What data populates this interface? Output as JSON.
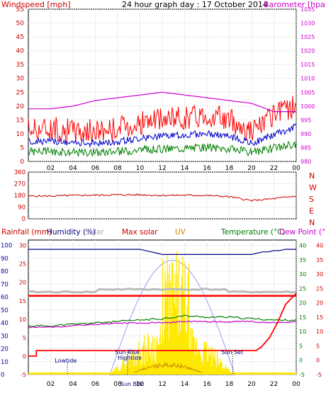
{
  "header": {
    "title": "24 hour graph day : 17 October 2014",
    "left_label": "Windspeed [mph]",
    "right_label": "Barometer [hpa]"
  },
  "colors": {
    "wind": "#ff0000",
    "windavg": "#0000cc",
    "windmin": "#008000",
    "baro": "#cc00cc",
    "dir": "#cc0000",
    "rain": "#0000cc",
    "humidity": "#000080",
    "solarmax": "#9999ff",
    "solar": "#ffe800",
    "uv": "#cc8800",
    "temp": "#008000",
    "dew": "#cc00cc",
    "rainline": "#ff0000",
    "band": "#bbbbbb",
    "grid": "#cccccc",
    "label_rain": "#cc0000",
    "label_humidity": "#000080",
    "label_solar": "#aaaaaa",
    "label_maxsolar": "#cc0000",
    "label_uv": "#cc8800",
    "label_temp": "#008000",
    "label_dew": "#cc00cc"
  },
  "wind_panel": {
    "y_ticks": [
      "55",
      "50",
      "45",
      "40",
      "35",
      "30",
      "25",
      "20",
      "15",
      "10",
      "5",
      "0"
    ],
    "baro_ticks": [
      "1035",
      "1030",
      "1025",
      "1020",
      "1015",
      "1010",
      "1005",
      "1000",
      "995",
      "990",
      "985",
      "980"
    ]
  },
  "dir_panel": {
    "y_ticks": [
      "360",
      "270",
      "180",
      "90",
      "0"
    ],
    "compass": [
      "N",
      "W",
      "S",
      "E",
      "N"
    ]
  },
  "bottom_panel": {
    "legend": {
      "rain": "Rainfall (mm)",
      "humidity": "Humidity (%)",
      "solar": "Solar",
      "maxsolar": "Max solar",
      "uv": "UV",
      "temp": "Temperature (°C)",
      "dew": "Dew Point (°C)"
    },
    "left1_ticks": [
      "100",
      "90",
      "80",
      "70",
      "60",
      "50",
      "40",
      "30",
      "20",
      "10",
      "0"
    ],
    "left2_ticks": [
      "30",
      "25",
      "20",
      "15",
      "10",
      "5",
      "0",
      "-5"
    ],
    "right1_ticks": [
      "40",
      "35",
      "30",
      "25",
      "20",
      "15",
      "10",
      "5",
      "0",
      "-5"
    ],
    "right2_ticks": [
      "40",
      "35",
      "30",
      "25",
      "20",
      "15",
      "10",
      "5",
      "0",
      "-5"
    ],
    "annotations": {
      "lowtide": "Lowtide",
      "sunrise": "Sun Rise",
      "hightide": "Hightide",
      "sunset": "Sun Set",
      "sunbb": "Sun BBc"
    }
  },
  "x_axis_labels": [
    "02",
    "04",
    "06",
    "08",
    "10",
    "12",
    "14",
    "16",
    "18",
    "20",
    "22",
    "00"
  ],
  "chart_data": [
    {
      "type": "line",
      "title": "24 hour graph day : 17 October 2014",
      "ylabel": "Windspeed [mph]",
      "y2label": "Barometer [hpa]",
      "ylim": [
        0,
        55
      ],
      "y2lim": [
        980,
        1035
      ],
      "x": [
        "02",
        "04",
        "06",
        "08",
        "10",
        "12",
        "14",
        "16",
        "18",
        "20",
        "22",
        "00"
      ],
      "series": [
        {
          "name": "Windspeed [mph]",
          "values": [
            12,
            11,
            11,
            12,
            14,
            15,
            16,
            17,
            15,
            11,
            16,
            21
          ]
        },
        {
          "name": "Barometer [hpa]",
          "values": [
            999,
            1000,
            1002,
            1003,
            1004,
            1005,
            1004,
            1003,
            1002,
            1001,
            998,
            998
          ]
        }
      ]
    },
    {
      "type": "line",
      "ylim": [
        0,
        360
      ],
      "x": [
        "02",
        "04",
        "06",
        "08",
        "10",
        "12",
        "14",
        "16",
        "18",
        "20",
        "22",
        "00"
      ],
      "series": [
        {
          "values": [
            175,
            180,
            182,
            185,
            185,
            180,
            182,
            180,
            170,
            140,
            155,
            175
          ]
        }
      ]
    },
    {
      "type": "line",
      "x": [
        "02",
        "04",
        "06",
        "08",
        "10",
        "12",
        "14",
        "16",
        "18",
        "20",
        "22",
        "00"
      ],
      "series": [
        {
          "name": "Humidity (%)",
          "values": [
            97,
            97,
            97,
            97,
            97,
            93,
            93,
            93,
            93,
            93,
            96,
            97
          ]
        },
        {
          "name": "Temperature (°C)",
          "values": [
            12,
            12.5,
            13,
            13.5,
            14,
            14.5,
            15.5,
            15,
            15,
            14.5,
            14,
            14
          ]
        },
        {
          "name": "Dew Point (°C)",
          "values": [
            11.5,
            12,
            12.5,
            13,
            13,
            13,
            13.5,
            13.5,
            13.5,
            13.5,
            13,
            13.5
          ]
        },
        {
          "name": "Rainfall (mm)",
          "values": [
            0,
            1.5,
            1.5,
            1.5,
            1.5,
            1.5,
            1.5,
            1.5,
            1.5,
            1.5,
            5,
            17
          ]
        },
        {
          "name": "Max solar",
          "values": [
            0,
            0,
            0,
            0,
            120,
            380,
            460,
            330,
            40,
            0,
            0,
            0
          ]
        }
      ]
    }
  ]
}
